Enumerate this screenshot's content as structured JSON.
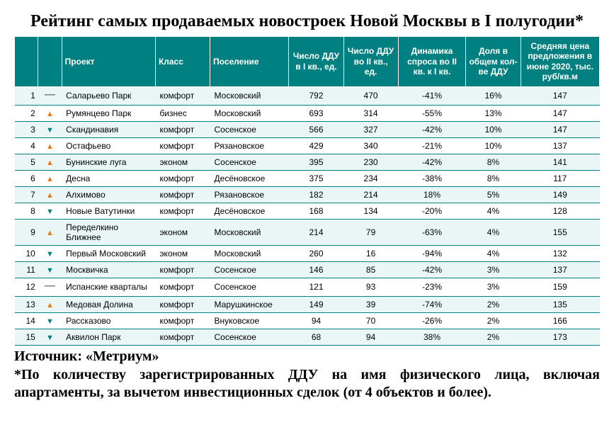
{
  "title": "Рейтинг самых продаваемых новостроек Новой Москвы в I полугодии*",
  "headers": {
    "project": "Проект",
    "class": "Класс",
    "settlement": "Поселение",
    "q1": "Число ДДУ в I кв., ед.",
    "q2": "Число ДДУ во II кв., ед.",
    "dynamics": "Динамика спроса во II кв. к I кв.",
    "share": "Доля в общем кол-ве ДДУ",
    "price": "Средняя цена предложения в июне 2020, тыс. руб/кв.м"
  },
  "trend_glyphs": {
    "same": "—",
    "up": "▲",
    "down": "▼"
  },
  "rows": [
    {
      "rank": 1,
      "trend": "same",
      "project": "Саларьево Парк",
      "class": "комфорт",
      "settlement": "Московский",
      "q1": "792",
      "q2": "470",
      "dyn": "-41%",
      "share": "16%",
      "price": "147"
    },
    {
      "rank": 2,
      "trend": "up",
      "project": "Румянцево Парк",
      "class": "бизнес",
      "settlement": "Московский",
      "q1": "693",
      "q2": "314",
      "dyn": "-55%",
      "share": "13%",
      "price": "147"
    },
    {
      "rank": 3,
      "trend": "down",
      "project": "Скандинавия",
      "class": "комфорт",
      "settlement": "Сосенское",
      "q1": "566",
      "q2": "327",
      "dyn": "-42%",
      "share": "10%",
      "price": "147"
    },
    {
      "rank": 4,
      "trend": "up",
      "project": "Остафьево",
      "class": "комфорт",
      "settlement": "Рязановское",
      "q1": "429",
      "q2": "340",
      "dyn": "-21%",
      "share": "10%",
      "price": "137"
    },
    {
      "rank": 5,
      "trend": "up",
      "project": "Бунинские луга",
      "class": "эконом",
      "settlement": "Сосенское",
      "q1": "395",
      "q2": "230",
      "dyn": "-42%",
      "share": "8%",
      "price": "141"
    },
    {
      "rank": 6,
      "trend": "up",
      "project": "Десна",
      "class": "комфорт",
      "settlement": "Десёновское",
      "q1": "375",
      "q2": "234",
      "dyn": "-38%",
      "share": "8%",
      "price": "117"
    },
    {
      "rank": 7,
      "trend": "up",
      "project": "Алхимово",
      "class": "комфорт",
      "settlement": "Рязановское",
      "q1": "182",
      "q2": "214",
      "dyn": "18%",
      "share": "5%",
      "price": "149"
    },
    {
      "rank": 8,
      "trend": "down",
      "project": "Новые Ватутинки",
      "class": "комфорт",
      "settlement": "Десёновское",
      "q1": "168",
      "q2": "134",
      "dyn": "-20%",
      "share": "4%",
      "price": "128"
    },
    {
      "rank": 9,
      "trend": "up",
      "project": "Переделкино Ближнее",
      "class": "эконом",
      "settlement": "Московский",
      "q1": "214",
      "q2": "79",
      "dyn": "-63%",
      "share": "4%",
      "price": "155"
    },
    {
      "rank": 10,
      "trend": "down",
      "project": "Первый Московский",
      "class": "эконом",
      "settlement": "Московский",
      "q1": "260",
      "q2": "16",
      "dyn": "-94%",
      "share": "4%",
      "price": "132"
    },
    {
      "rank": 11,
      "trend": "down",
      "project": "Москвичка",
      "class": "комфорт",
      "settlement": "Сосенское",
      "q1": "146",
      "q2": "85",
      "dyn": "-42%",
      "share": "3%",
      "price": "137"
    },
    {
      "rank": 12,
      "trend": "same",
      "project": "Испанские кварталы",
      "class": "комфорт",
      "settlement": "Сосенское",
      "q1": "121",
      "q2": "93",
      "dyn": "-23%",
      "share": "3%",
      "price": "159"
    },
    {
      "rank": 13,
      "trend": "up",
      "project": "Медовая Долина",
      "class": "комфорт",
      "settlement": "Марушкинское",
      "q1": "149",
      "q2": "39",
      "dyn": "-74%",
      "share": "2%",
      "price": "135"
    },
    {
      "rank": 14,
      "trend": "down",
      "project": "Рассказово",
      "class": "комфорт",
      "settlement": "Внуковское",
      "q1": "94",
      "q2": "70",
      "dyn": "-26%",
      "share": "2%",
      "price": "166"
    },
    {
      "rank": 15,
      "trend": "down",
      "project": "Аквилон Парк",
      "class": "комфорт",
      "settlement": "Сосенское",
      "q1": "68",
      "q2": "94",
      "dyn": "38%",
      "share": "2%",
      "price": "173"
    }
  ],
  "source": "Источник: «Метриум»",
  "footnote": "*По количеству зарегистрированных ДДУ на имя физического лица, включая апартаменты, за вычетом инвестиционных сделок (от 4 объектов и более)."
}
